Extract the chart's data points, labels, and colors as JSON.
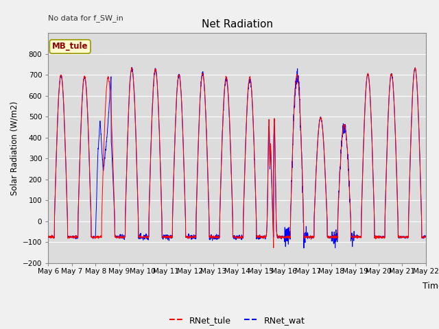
{
  "title": "Net Radiation",
  "ylabel": "Solar Radiation (W/m2)",
  "xlabel": "Time",
  "annotation": "No data for f_SW_in",
  "legend_label1": "RNet_tule",
  "legend_label2": "RNet_wat",
  "legend_box_label": "MB_tule",
  "ylim": [
    -200,
    900
  ],
  "yticks": [
    -200,
    -100,
    0,
    100,
    200,
    300,
    400,
    500,
    600,
    700,
    800
  ],
  "color_tule": "#FF0000",
  "color_wat": "#0000FF",
  "bg_color": "#DCDCDC",
  "n_days": 16,
  "start_day": 6,
  "color_legend_box_bg": "#FFFACD",
  "color_legend_box_border": "#999900",
  "annotation_color": "#333333",
  "grid_color": "#C8C8C8",
  "fig_bg": "#F0F0F0"
}
